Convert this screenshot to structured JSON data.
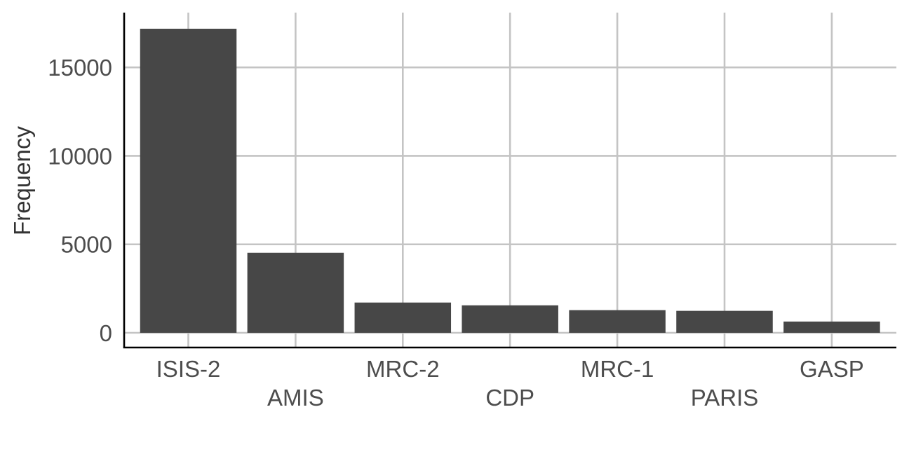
{
  "chart_data": {
    "type": "bar",
    "title": "",
    "xlabel": "",
    "ylabel": "Frequency",
    "categories": [
      "ISIS-2",
      "AMIS",
      "MRC-2",
      "CDP",
      "MRC-1",
      "PARIS",
      "GASP"
    ],
    "values": [
      17187,
      4524,
      1710,
      1552,
      1279,
      1241,
      635
    ],
    "ylim": [
      0,
      17187
    ],
    "yticks": [
      0,
      5000,
      10000,
      15000
    ],
    "ytick_labels": [
      "0",
      "5000",
      "10000",
      "15000"
    ],
    "grid": true,
    "legend": "none",
    "colors": {
      "bar": "#474747",
      "grid": "#c4c4c4",
      "axis": "#000000",
      "tick_text": "#4d4d4d",
      "title_text": "#333333"
    }
  }
}
